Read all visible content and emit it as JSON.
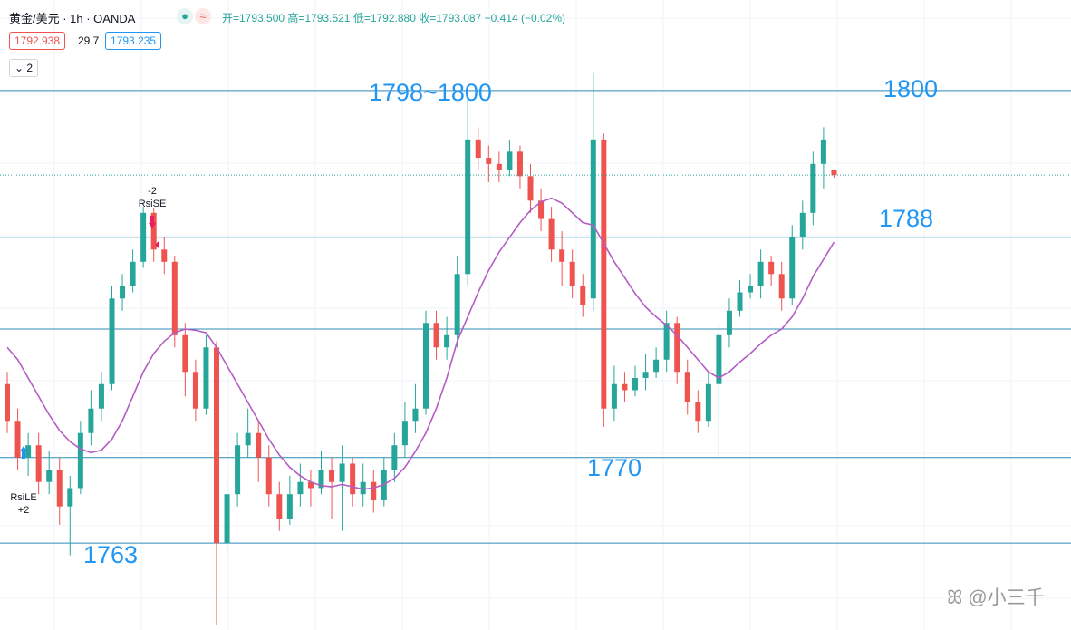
{
  "header": {
    "title": "黄金/美元 · 1h · OANDA",
    "ohlc": [
      "开=1793.500",
      "高=1793.521",
      "低=1792.880",
      "收=1793.087"
    ],
    "change": "−0.414 (−0.02%)",
    "bid": "1792.938",
    "spread": "29.7",
    "ask": "1793.235",
    "indicators": "2"
  },
  "chart_data": {
    "type": "candlestick",
    "ylim": [
      1755.9,
      1807.4
    ],
    "up_color": "#26a69a",
    "down_color": "#ef5350",
    "ma_color": "#b45cc4",
    "line_color": "#2f8bb6",
    "open": [
      1776,
      1773,
      1770,
      1771,
      1768,
      1769,
      1766,
      1767.5,
      1772,
      1774,
      1776,
      1783,
      1784,
      1786,
      1790,
      1787,
      1786,
      1780,
      1777,
      1774,
      1779,
      1763,
      1767,
      1771,
      1772,
      1770,
      1767,
      1765,
      1767,
      1768,
      1767.5,
      1769,
      1768,
      1769.5,
      1767,
      1768,
      1766.5,
      1769,
      1771,
      1773,
      1774,
      1781,
      1779,
      1780,
      1785,
      1796,
      1794.5,
      1794,
      1793.5,
      1795,
      1793,
      1791,
      1789.5,
      1787,
      1786,
      1784,
      1783,
      1796,
      1774,
      1776,
      1775.5,
      1776.5,
      1777,
      1778,
      1781,
      1777,
      1774.5,
      1773,
      1776,
      1780,
      1782,
      1783.5,
      1784,
      1786,
      1785,
      1783,
      1788,
      1790,
      1794,
      1793.5
    ],
    "high": [
      1777,
      1774,
      1772,
      1772,
      1770.5,
      1770,
      1768.5,
      1773,
      1775.5,
      1777,
      1784,
      1785,
      1787,
      1790.5,
      1790.4,
      1788,
      1786.5,
      1781,
      1778,
      1780,
      1779.5,
      1768.5,
      1772,
      1774,
      1773,
      1771,
      1768,
      1768.5,
      1769.5,
      1769,
      1770.5,
      1770,
      1771,
      1770,
      1769.5,
      1769,
      1770,
      1772,
      1774.5,
      1776,
      1782,
      1782,
      1781.5,
      1786.5,
      1800,
      1797,
      1795.5,
      1795,
      1796,
      1795.5,
      1794,
      1792,
      1790.5,
      1788.5,
      1787,
      1785,
      1801.5,
      1796.5,
      1777.5,
      1777,
      1777.5,
      1778.5,
      1779,
      1782,
      1781.5,
      1778,
      1775.5,
      1777,
      1781,
      1783,
      1784.5,
      1785,
      1787,
      1786.5,
      1786,
      1789,
      1791,
      1795,
      1797,
      1793.521
    ],
    "low": [
      1772,
      1769,
      1768.5,
      1767,
      1767,
      1764.5,
      1762,
      1767,
      1771,
      1773,
      1775.5,
      1782,
      1783.5,
      1785.5,
      1786,
      1785,
      1779,
      1775,
      1773,
      1773.5,
      1756.3,
      1762,
      1766,
      1770,
      1768,
      1766,
      1764,
      1764.5,
      1766,
      1766,
      1767,
      1765,
      1764,
      1766,
      1766,
      1765.5,
      1766,
      1768,
      1770,
      1772,
      1773.5,
      1778,
      1778,
      1779,
      1784,
      1793.5,
      1792.5,
      1792.5,
      1793,
      1792,
      1790,
      1788.5,
      1786,
      1784,
      1783,
      1781.5,
      1782,
      1772.5,
      1773,
      1774.5,
      1775,
      1775.5,
      1776.5,
      1777,
      1776,
      1773.5,
      1772,
      1772.5,
      1770,
      1779,
      1781.5,
      1783,
      1783,
      1784,
      1782,
      1782.5,
      1787,
      1789,
      1792,
      1792.88
    ],
    "close": [
      1773,
      1770,
      1771,
      1768,
      1769,
      1766,
      1767.5,
      1772,
      1774,
      1776,
      1783,
      1784,
      1786,
      1790,
      1787,
      1786,
      1780,
      1777,
      1774,
      1779,
      1763,
      1767,
      1771,
      1772,
      1770,
      1767,
      1765,
      1767,
      1768,
      1767.5,
      1769,
      1768,
      1769.5,
      1767,
      1768,
      1766.5,
      1769,
      1771,
      1773,
      1774,
      1781,
      1779,
      1780,
      1785,
      1796,
      1794.5,
      1794,
      1793.5,
      1795,
      1793,
      1791,
      1789.5,
      1787,
      1786,
      1784,
      1782.5,
      1796,
      1774,
      1776,
      1775.5,
      1776.5,
      1777,
      1778,
      1781,
      1777,
      1774.5,
      1773,
      1776,
      1780,
      1782,
      1783.5,
      1784,
      1786,
      1785,
      1783,
      1788,
      1790,
      1794,
      1796,
      1793.087
    ],
    "ma": [
      1779,
      1778,
      1776.5,
      1775,
      1773.5,
      1772.2,
      1771.3,
      1770.7,
      1770.4,
      1770.6,
      1771.5,
      1773,
      1775,
      1777,
      1778.5,
      1779.5,
      1780.2,
      1780.5,
      1780.4,
      1780.2,
      1779,
      1777.5,
      1776,
      1774.5,
      1773,
      1771.5,
      1770.2,
      1769.2,
      1768.5,
      1768,
      1767.7,
      1767.6,
      1767.8,
      1767.6,
      1767.4,
      1767.5,
      1767.8,
      1768.3,
      1769.2,
      1770.5,
      1772,
      1774,
      1776.5,
      1779.5,
      1781.5,
      1783.5,
      1785.3,
      1786.8,
      1788,
      1789.2,
      1790.2,
      1790.9,
      1791.2,
      1790.8,
      1790,
      1789.2,
      1789,
      1787.5,
      1786,
      1784.7,
      1783.4,
      1782.3,
      1781.5,
      1780.8,
      1780,
      1779,
      1778,
      1777,
      1776.5,
      1777,
      1777.8,
      1778.5,
      1779.3,
      1780,
      1780.5,
      1781.5,
      1783,
      1784.8,
      1786.2,
      1787.6
    ],
    "hlines": [
      1800,
      1788,
      1780.5,
      1770,
      1763
    ],
    "annotations": [
      "1798~1800",
      "1800",
      "1788",
      "1770",
      "1763"
    ],
    "signals": [
      {
        "label": "RsiLE",
        "qty": "+2"
      },
      {
        "label": "RsiSE",
        "qty": "-2"
      }
    ]
  },
  "watermark": "@小三千"
}
